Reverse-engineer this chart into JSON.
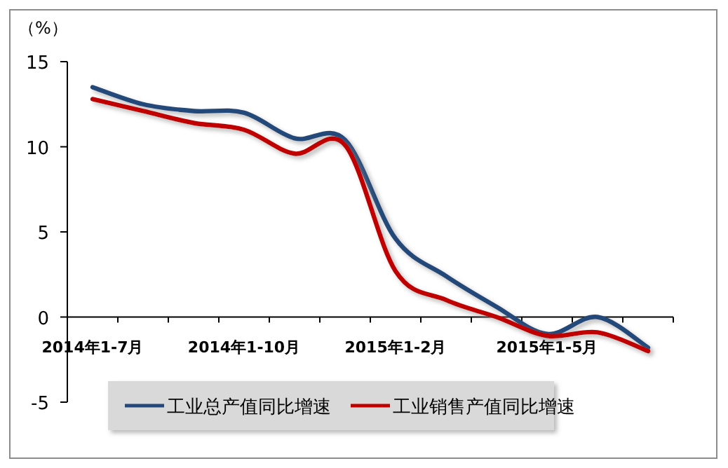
{
  "chart_data": {
    "type": "line",
    "ylabel": "（%）",
    "categories": [
      "2014年1-7月",
      null,
      null,
      "2014年1-10月",
      null,
      null,
      "2015年1-2月",
      null,
      null,
      "2015年1-5月",
      null,
      null
    ],
    "series": [
      {
        "name": "工业总产值同比增速",
        "color": "#24487a",
        "values": [
          13.5,
          12.5,
          12.1,
          12.0,
          10.5,
          10.4,
          4.6,
          2.4,
          0.6,
          -1.0,
          0.0,
          -1.8
        ]
      },
      {
        "name": "工业销售产值同比增速",
        "color": "#c00000",
        "values": [
          12.8,
          12.1,
          11.4,
          11.0,
          9.6,
          10.1,
          2.7,
          1.0,
          0.0,
          -1.1,
          -0.9,
          -2.0
        ]
      }
    ],
    "ylim": [
      -5,
      15
    ],
    "yticks": [
      -5,
      0,
      5,
      10,
      15
    ],
    "grid": false,
    "legend": "bottom",
    "marker": "none",
    "line_style": "solid"
  }
}
